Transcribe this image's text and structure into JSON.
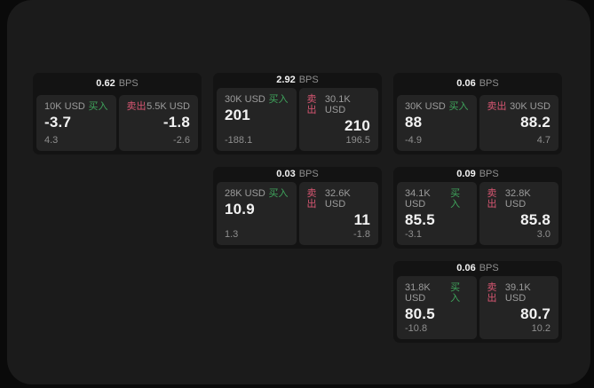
{
  "colors": {
    "panel_bg": "#1b1b1b",
    "card_bg": "#131313",
    "tile_bg": "#242424",
    "buy_green": "#3fa45c",
    "sell_red": "#d75672",
    "text_primary": "#f2f2f2",
    "text_secondary": "#9c9c9c",
    "text_dim": "#8f8f8f"
  },
  "labels": {
    "bps_unit": "BPS",
    "buy": "买入",
    "sell": "卖出"
  },
  "cards": [
    {
      "bps": "0.62",
      "col": 1,
      "row": 1,
      "buy": {
        "amount": "10K USD",
        "value": "-3.7",
        "sub": "4.3"
      },
      "sell": {
        "amount": "5.5K USD",
        "value": "-1.8",
        "sub": "-2.6"
      }
    },
    {
      "bps": "2.92",
      "col": 2,
      "row": 1,
      "buy": {
        "amount": "30K USD",
        "value": "201",
        "sub": "-188.1"
      },
      "sell": {
        "amount": "30.1K USD",
        "value": "210",
        "sub": "196.5"
      }
    },
    {
      "bps": "0.06",
      "col": 3,
      "row": 1,
      "buy": {
        "amount": "30K USD",
        "value": "88",
        "sub": "-4.9"
      },
      "sell": {
        "amount": "30K USD",
        "value": "88.2",
        "sub": "4.7"
      }
    },
    {
      "bps": "0.03",
      "col": 2,
      "row": 2,
      "buy": {
        "amount": "28K USD",
        "value": "10.9",
        "sub": "1.3"
      },
      "sell": {
        "amount": "32.6K USD",
        "value": "11",
        "sub": "-1.8"
      }
    },
    {
      "bps": "0.09",
      "col": 3,
      "row": 2,
      "buy": {
        "amount": "34.1K USD",
        "value": "85.5",
        "sub": "-3.1"
      },
      "sell": {
        "amount": "32.8K USD",
        "value": "85.8",
        "sub": "3.0"
      }
    },
    {
      "bps": "0.06",
      "col": 3,
      "row": 3,
      "buy": {
        "amount": "31.8K USD",
        "value": "80.5",
        "sub": "-10.8"
      },
      "sell": {
        "amount": "39.1K USD",
        "value": "80.7",
        "sub": "10.2"
      }
    }
  ]
}
